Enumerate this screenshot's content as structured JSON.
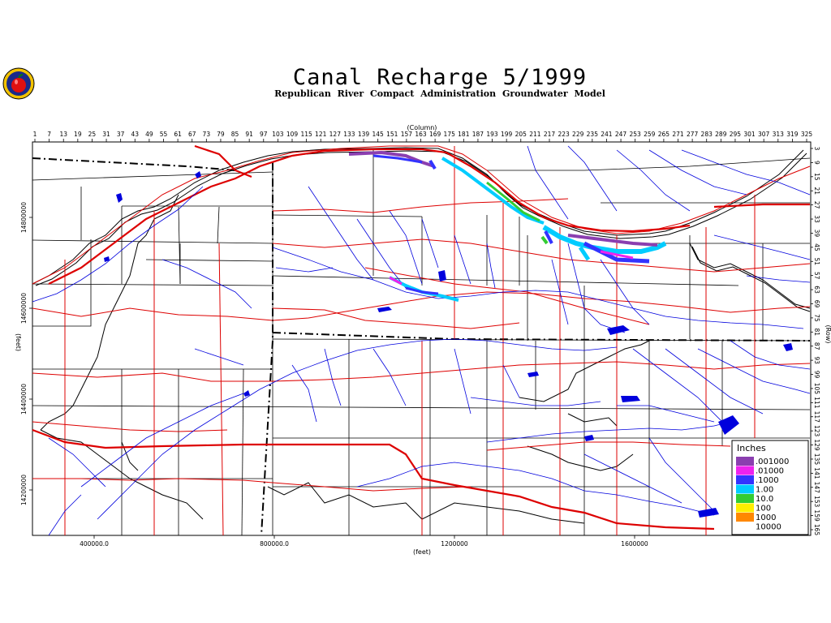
{
  "title": "Canal Recharge 5/1999",
  "subtitle": "Republican River Compact Administration Groundwater Model",
  "axes": {
    "column_label": "(Column)",
    "row_label": "(Row)",
    "x_unit_label": "(feet)",
    "y_unit_label": "(feet)",
    "column_ticks": [
      "1",
      "7",
      "13",
      "19",
      "25",
      "31",
      "37",
      "43",
      "49",
      "55",
      "61",
      "67",
      "73",
      "79",
      "85",
      "91",
      "97",
      "103",
      "109",
      "115",
      "121",
      "127",
      "133",
      "139",
      "145",
      "151",
      "157",
      "163",
      "169",
      "175",
      "181",
      "187",
      "193",
      "199",
      "205",
      "211",
      "217",
      "223",
      "229",
      "235",
      "241",
      "247",
      "253",
      "259",
      "265",
      "271",
      "277",
      "283",
      "289",
      "295",
      "301",
      "307",
      "313",
      "319",
      "325"
    ],
    "row_ticks": [
      "3",
      "9",
      "15",
      "21",
      "27",
      "33",
      "39",
      "45",
      "51",
      "57",
      "63",
      "69",
      "75",
      "81",
      "87",
      "93",
      "99",
      "105",
      "111",
      "117",
      "123",
      "129",
      "135",
      "141",
      "147",
      "153",
      "159",
      "165"
    ],
    "x_ticks": [
      "400000.0",
      "800000.0",
      "1200000",
      "1600000"
    ],
    "y_ticks": [
      "14800000",
      "14600000",
      "14400000",
      "14200000"
    ]
  },
  "legend": {
    "title": "Inches",
    "items": [
      {
        "label": ".001000",
        "color": "#8b3fb0"
      },
      {
        "label": ".01000",
        "color": "#ee22ee"
      },
      {
        "label": ".1000",
        "color": "#3333ff"
      },
      {
        "label": "1.00",
        "color": "#00ccff"
      },
      {
        "label": "10.0",
        "color": "#33cc33"
      },
      {
        "label": "100",
        "color": "#ffee00"
      },
      {
        "label": "1000",
        "color": "#ff8800"
      },
      {
        "label": "10000",
        "color": "#ffffff"
      }
    ]
  },
  "map_colors": {
    "roads": "#dd0000",
    "streams": "#0000dd",
    "boundaries": "#000000"
  }
}
